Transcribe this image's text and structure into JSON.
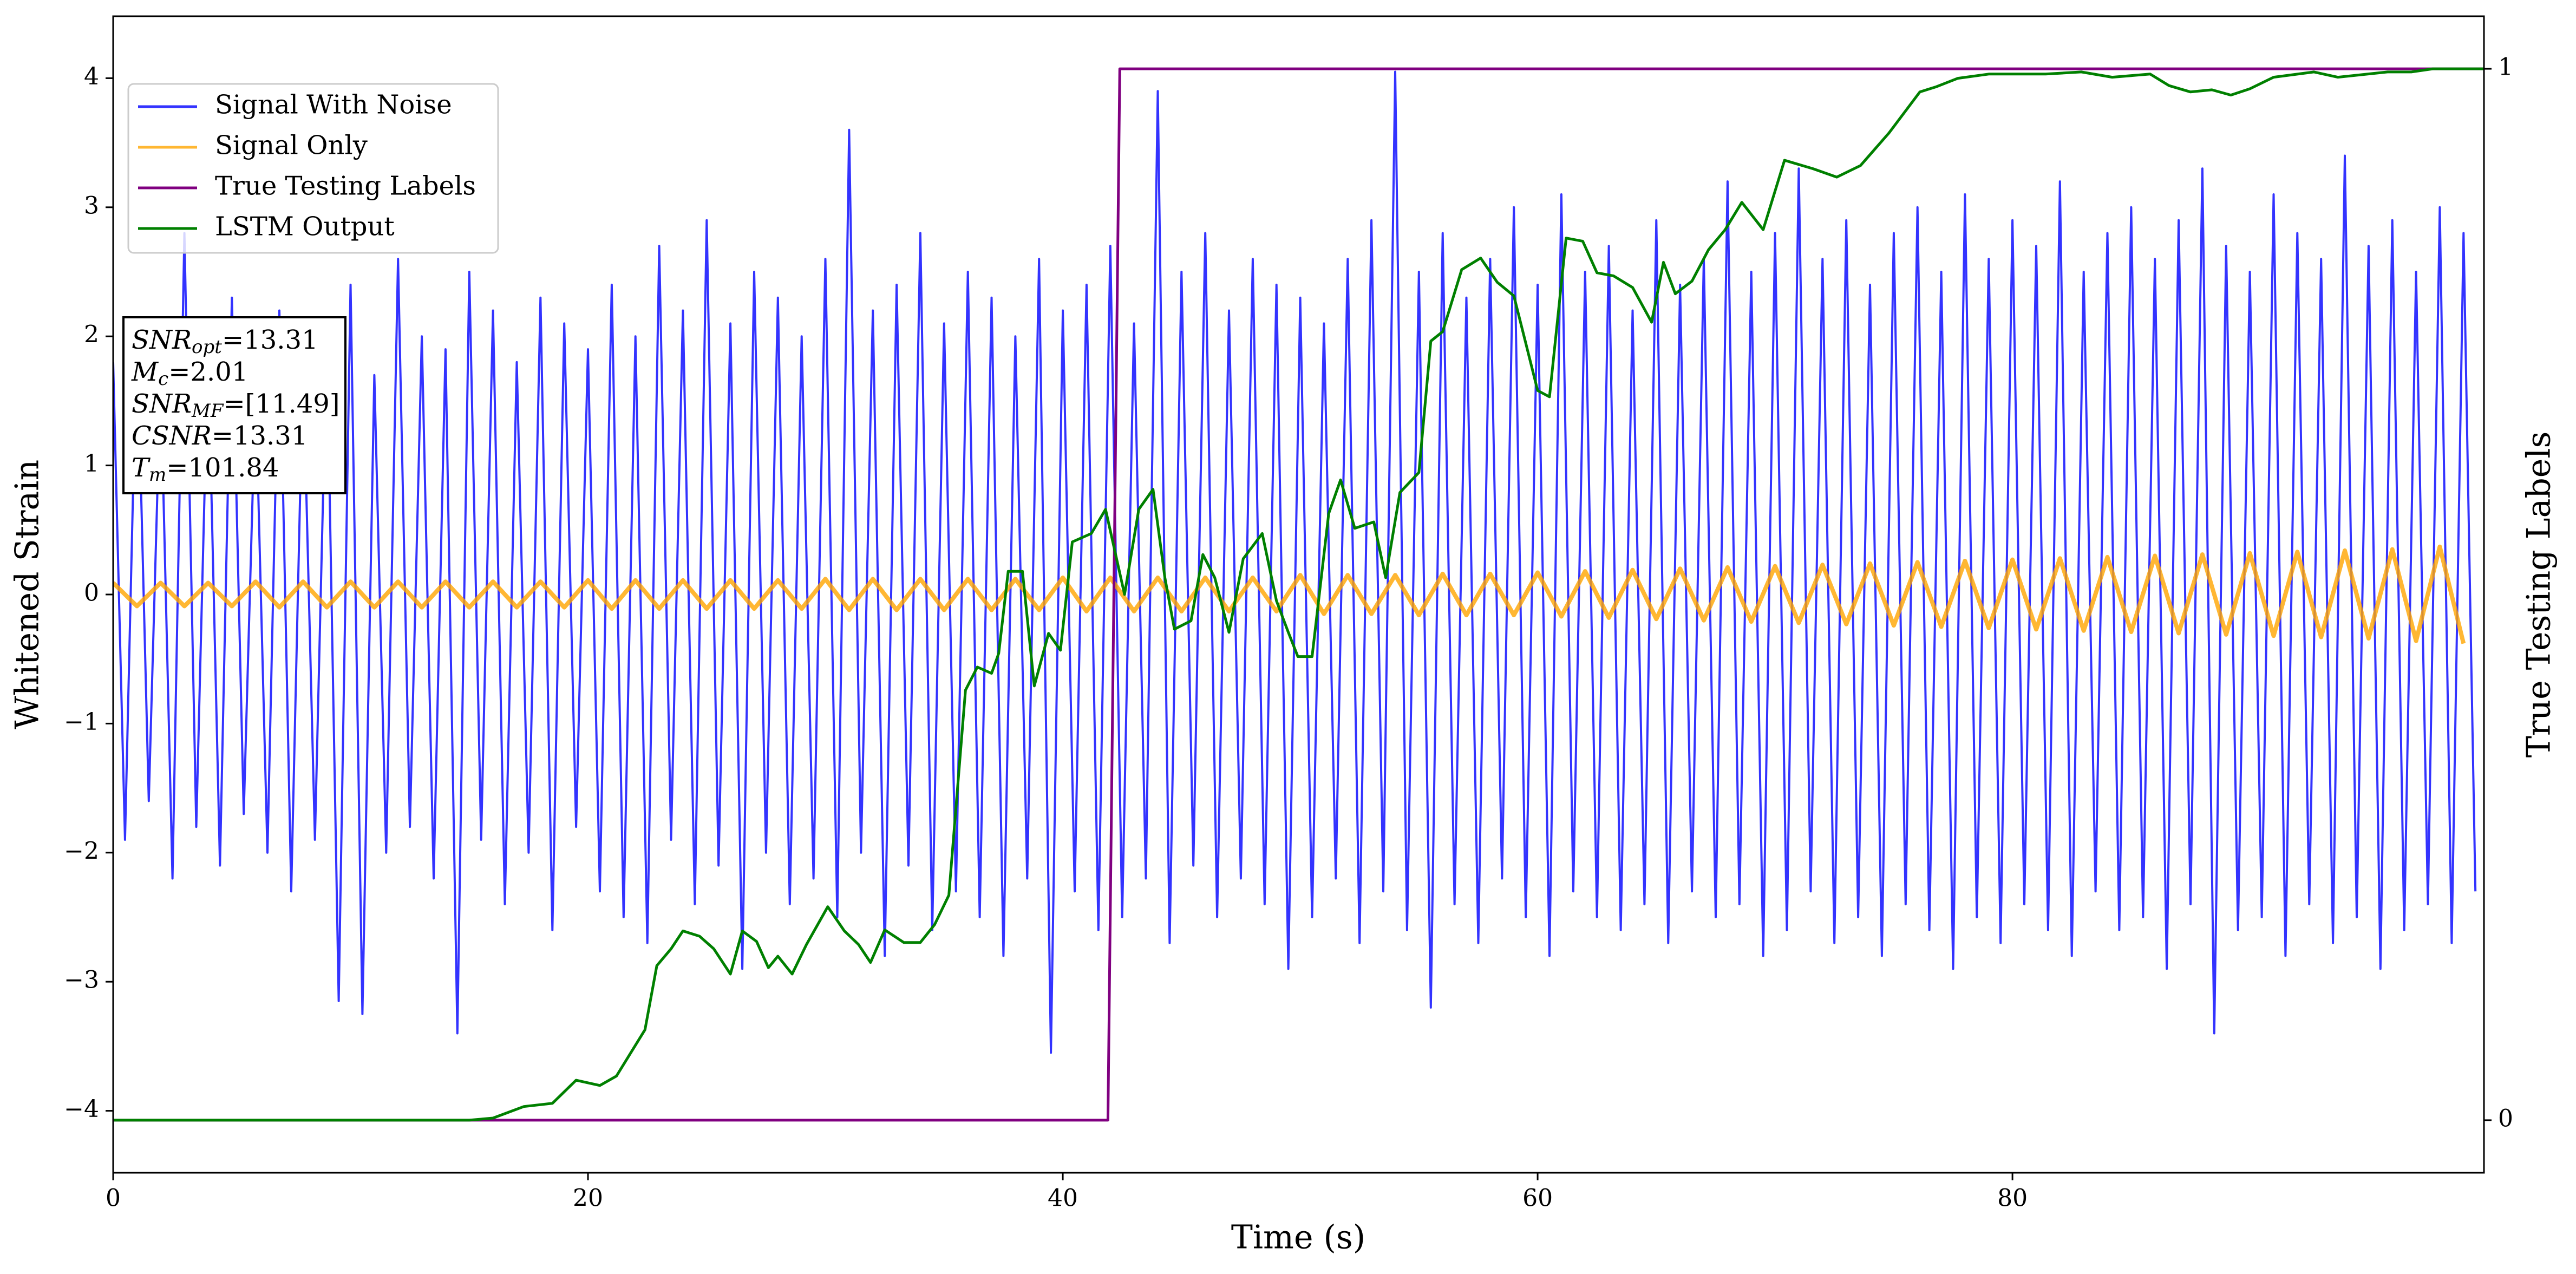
{
  "chart_data": {
    "type": "line",
    "xlabel": "Time (s)",
    "ylabel": "Whitened Strain",
    "y2label": "True Testing Labels",
    "xlim": [
      0,
      99.86
    ],
    "xticks": [
      0,
      20,
      40,
      60,
      80
    ],
    "ylim": [
      -4.48,
      4.48
    ],
    "yticks": [
      {
        "value": -4,
        "label": "−4"
      },
      {
        "value": -3,
        "label": "−3"
      },
      {
        "value": -2,
        "label": "−2"
      },
      {
        "value": -1,
        "label": "−1"
      },
      0,
      1,
      2,
      3,
      4
    ],
    "y2lim": [
      -0.05,
      1.05
    ],
    "y2ticks": [
      0,
      1
    ],
    "legend": "upper left",
    "annotation": [
      {
        "symbol": "SNR",
        "subscript": "opt",
        "text": "=13.31"
      },
      {
        "symbol": "M",
        "subscript": "c",
        "text": "=2.01"
      },
      {
        "symbol": "SNR",
        "subscript": "MF",
        "text": "=[11.49]"
      },
      {
        "symbol": "CSNR",
        "text": "=13.31"
      },
      {
        "symbol": "T",
        "subscript": "m",
        "text": "=101.84"
      }
    ],
    "series": [
      {
        "name": "Signal With Noise",
        "color": "#0000ff",
        "x": [
          0,
          0.5,
          1,
          1.5,
          2,
          2.5,
          3,
          3.5,
          4,
          4.5,
          5,
          5.5,
          6,
          6.5,
          7,
          7.5,
          8,
          8.5,
          9,
          9.5,
          10,
          10.5,
          11,
          11.5,
          12,
          12.5,
          13,
          13.5,
          14,
          14.5,
          15,
          15.5,
          16,
          16.5,
          17,
          17.5,
          18,
          18.5,
          19,
          19.5,
          20,
          20.5,
          21,
          21.5,
          22,
          22.5,
          23,
          23.5,
          24,
          24.5,
          25,
          25.5,
          26,
          26.5,
          27,
          27.5,
          28,
          28.5,
          29,
          29.5,
          30,
          30.5,
          31,
          31.5,
          32,
          32.5,
          33,
          33.5,
          34,
          34.5,
          35,
          35.5,
          36,
          36.5,
          37,
          37.5,
          38,
          38.5,
          39,
          39.5,
          40,
          40.5,
          41,
          41.5,
          42,
          42.5,
          43,
          43.5,
          44,
          44.5,
          45,
          45.5,
          46,
          46.5,
          47,
          47.5,
          48,
          48.5,
          49,
          49.5,
          50,
          50.5,
          51,
          51.5,
          52,
          52.5,
          53,
          53.5,
          54,
          54.5,
          55,
          55.5,
          56,
          56.5,
          57,
          57.5,
          58,
          58.5,
          59,
          59.5,
          60,
          60.5,
          61,
          61.5,
          62,
          62.5,
          63,
          63.5,
          64,
          64.5,
          65,
          65.5,
          66,
          66.5,
          67,
          67.5,
          68,
          68.5,
          69,
          69.5,
          70,
          70.5,
          71,
          71.5,
          72,
          72.5,
          73,
          73.5,
          74,
          74.5,
          75,
          75.5,
          76,
          76.5,
          77,
          77.5,
          78,
          78.5,
          79,
          79.5,
          80,
          80.5,
          81,
          81.5,
          82,
          82.5,
          83,
          83.5,
          84,
          84.5,
          85,
          85.5,
          86,
          86.5,
          87,
          87.5,
          88,
          88.5,
          89,
          89.5,
          90,
          90.5,
          91,
          91.5,
          92,
          92.5,
          93,
          93.5,
          94,
          94.5,
          95,
          95.5,
          96,
          96.5,
          97,
          97.5,
          98,
          98.5,
          99,
          99.5
        ],
        "values": [
          1.8,
          -1.9,
          2.1,
          -1.6,
          1.7,
          -2.2,
          2.8,
          -1.8,
          1.9,
          -2.1,
          2.3,
          -1.7,
          1.6,
          -2.0,
          2.2,
          -2.3,
          1.8,
          -1.9,
          2.0,
          -3.15,
          2.4,
          -3.25,
          1.7,
          -2.0,
          2.6,
          -1.8,
          2.0,
          -2.2,
          1.9,
          -3.4,
          2.5,
          -1.9,
          2.2,
          -2.4,
          1.8,
          -2.0,
          2.3,
          -2.6,
          2.1,
          -1.8,
          1.9,
          -2.3,
          2.4,
          -2.5,
          2.0,
          -2.7,
          2.7,
          -1.9,
          2.2,
          -2.4,
          2.9,
          -2.1,
          2.1,
          -2.9,
          2.5,
          -2.0,
          2.3,
          -2.4,
          2.0,
          -2.2,
          2.6,
          -2.5,
          3.6,
          -2.0,
          2.2,
          -2.8,
          2.4,
          -2.1,
          2.8,
          -2.6,
          2.1,
          -2.3,
          2.5,
          -2.5,
          2.3,
          -2.8,
          2.0,
          -2.2,
          2.6,
          -3.55,
          2.2,
          -2.3,
          2.4,
          -2.6,
          2.7,
          -2.5,
          2.1,
          -2.2,
          3.9,
          -2.7,
          2.5,
          -2.1,
          2.8,
          -2.5,
          2.2,
          -2.2,
          2.6,
          -2.4,
          2.4,
          -2.9,
          2.3,
          -2.5,
          2.1,
          -2.2,
          2.6,
          -2.7,
          2.9,
          -2.3,
          4.05,
          -2.6,
          2.5,
          -3.2,
          2.8,
          -2.4,
          2.3,
          -2.7,
          2.6,
          -2.2,
          3.0,
          -2.5,
          2.4,
          -2.8,
          3.1,
          -2.3,
          2.5,
          -2.5,
          2.7,
          -2.6,
          2.2,
          -2.4,
          2.9,
          -2.7,
          2.4,
          -2.3,
          2.6,
          -2.5,
          3.2,
          -2.4,
          2.5,
          -2.8,
          2.8,
          -2.6,
          3.3,
          -2.3,
          2.6,
          -2.7,
          2.9,
          -2.5,
          2.4,
          -2.8,
          2.8,
          -2.4,
          3.0,
          -2.6,
          2.5,
          -2.9,
          3.1,
          -2.5,
          2.6,
          -2.7,
          2.9,
          -2.4,
          2.7,
          -2.6,
          3.2,
          -2.8,
          2.5,
          -2.3,
          2.8,
          -2.6,
          3.0,
          -2.5,
          2.6,
          -2.9,
          2.9,
          -2.4,
          3.3,
          -3.4,
          2.7,
          -2.6,
          2.5,
          -2.5,
          3.1,
          -2.8,
          2.8,
          -2.4,
          2.6,
          -2.7,
          3.4,
          -2.5,
          2.7,
          -2.9,
          2.9,
          -2.6,
          2.5,
          -2.4,
          3.0,
          -2.7,
          2.8,
          -2.3
        ]
      },
      {
        "name": "Signal Only",
        "color": "#ffa500",
        "x": [
          0,
          1,
          2,
          3,
          4,
          5,
          6,
          7,
          8,
          9,
          10,
          11,
          12,
          13,
          14,
          15,
          16,
          17,
          18,
          19,
          20,
          21,
          22,
          23,
          24,
          25,
          26,
          27,
          28,
          29,
          30,
          31,
          32,
          33,
          34,
          35,
          36,
          37,
          38,
          39,
          40,
          41,
          42,
          43,
          44,
          45,
          46,
          47,
          48,
          49,
          50,
          51,
          52,
          53,
          54,
          55,
          56,
          57,
          58,
          59,
          60,
          61,
          62,
          63,
          64,
          65,
          66,
          67,
          68,
          69,
          70,
          71,
          72,
          73,
          74,
          75,
          76,
          77,
          78,
          79,
          80,
          81,
          82,
          83,
          84,
          85,
          86,
          87,
          88,
          89,
          90,
          91,
          92,
          93,
          94,
          95,
          96,
          97,
          98,
          99
        ],
        "values": [
          0.09,
          -0.09,
          0.09,
          -0.09,
          0.09,
          -0.09,
          0.1,
          -0.1,
          0.1,
          -0.1,
          0.1,
          -0.1,
          0.1,
          -0.1,
          0.1,
          -0.1,
          0.1,
          -0.1,
          0.1,
          -0.1,
          0.11,
          -0.11,
          0.11,
          -0.11,
          0.11,
          -0.11,
          0.11,
          -0.11,
          0.11,
          -0.11,
          0.12,
          -0.12,
          0.12,
          -0.12,
          0.12,
          -0.12,
          0.12,
          -0.12,
          0.12,
          -0.12,
          0.13,
          -0.13,
          0.13,
          -0.13,
          0.13,
          -0.13,
          0.13,
          -0.13,
          0.13,
          -0.13,
          0.15,
          -0.15,
          0.15,
          -0.15,
          0.15,
          -0.16,
          0.16,
          -0.16,
          0.16,
          -0.16,
          0.17,
          -0.17,
          0.18,
          -0.18,
          0.19,
          -0.19,
          0.2,
          -0.2,
          0.21,
          -0.21,
          0.22,
          -0.22,
          0.23,
          -0.23,
          0.24,
          -0.24,
          0.25,
          -0.25,
          0.26,
          -0.26,
          0.27,
          -0.27,
          0.28,
          -0.28,
          0.29,
          -0.29,
          0.3,
          -0.3,
          0.31,
          -0.31,
          0.32,
          -0.32,
          0.33,
          -0.33,
          0.34,
          -0.34,
          0.35,
          -0.36,
          0.37,
          -0.38
        ]
      },
      {
        "name": "True Testing Labels",
        "color": "#800080",
        "axis": "y2",
        "x": [
          0,
          41.9,
          42.4,
          99.9
        ],
        "values": [
          0,
          0,
          1,
          1
        ]
      },
      {
        "name": "LSTM Output",
        "color": "#008000",
        "axis": "y2",
        "x": [
          0,
          15,
          16,
          17.3,
          18.5,
          19.5,
          20.5,
          21.2,
          21.8,
          22.4,
          22.9,
          23.5,
          24,
          24.7,
          25.3,
          26,
          26.5,
          27.1,
          27.6,
          28,
          28.6,
          29.2,
          30.1,
          30.8,
          31.4,
          31.9,
          32.5,
          33.3,
          34,
          34.6,
          35.2,
          35.9,
          36.4,
          37,
          37.3,
          37.7,
          38.3,
          38.8,
          39.4,
          39.9,
          40.4,
          41.2,
          41.8,
          42.6,
          43.2,
          43.8,
          44.3,
          44.7,
          45.4,
          45.9,
          46.4,
          47,
          47.6,
          48.4,
          49,
          49.5,
          49.9,
          50.5,
          51.2,
          51.7,
          52.3,
          53.1,
          53.6,
          54.2,
          55,
          55.5,
          56,
          56.8,
          57.6,
          58.3,
          59,
          59.5,
          60,
          60.5,
          61.2,
          61.9,
          62.5,
          63.2,
          64,
          64.8,
          65.3,
          65.8,
          66.5,
          67.2,
          67.9,
          68.6,
          69.5,
          70.4,
          71.6,
          72.6,
          73.6,
          74.8,
          76.1,
          76.8,
          77.7,
          79,
          81.4,
          82.9,
          84.2,
          85.8,
          86.6,
          87.5,
          88.4,
          89.2,
          90,
          91,
          92.7,
          93.7,
          95.8,
          96.8,
          97.7,
          99.9
        ],
        "values": [
          0,
          0,
          0.002,
          0.013,
          0.016,
          0.038,
          0.033,
          0.042,
          0.064,
          0.086,
          0.147,
          0.163,
          0.18,
          0.175,
          0.163,
          0.139,
          0.18,
          0.17,
          0.145,
          0.156,
          0.139,
          0.167,
          0.203,
          0.18,
          0.167,
          0.15,
          0.181,
          0.169,
          0.169,
          0.186,
          0.214,
          0.409,
          0.431,
          0.425,
          0.444,
          0.522,
          0.522,
          0.413,
          0.463,
          0.447,
          0.55,
          0.558,
          0.581,
          0.5,
          0.581,
          0.6,
          0.516,
          0.467,
          0.475,
          0.538,
          0.516,
          0.464,
          0.534,
          0.558,
          0.494,
          0.464,
          0.441,
          0.441,
          0.577,
          0.609,
          0.563,
          0.569,
          0.516,
          0.597,
          0.616,
          0.741,
          0.75,
          0.809,
          0.82,
          0.797,
          0.784,
          0.739,
          0.694,
          0.688,
          0.839,
          0.836,
          0.806,
          0.803,
          0.792,
          0.759,
          0.816,
          0.786,
          0.798,
          0.828,
          0.847,
          0.873,
          0.847,
          0.913,
          0.905,
          0.897,
          0.908,
          0.939,
          0.978,
          0.983,
          0.991,
          0.995,
          0.995,
          0.997,
          0.992,
          0.995,
          0.984,
          0.978,
          0.98,
          0.975,
          0.981,
          0.992,
          0.997,
          0.992,
          0.997,
          0.997,
          1,
          1
        ]
      }
    ]
  }
}
